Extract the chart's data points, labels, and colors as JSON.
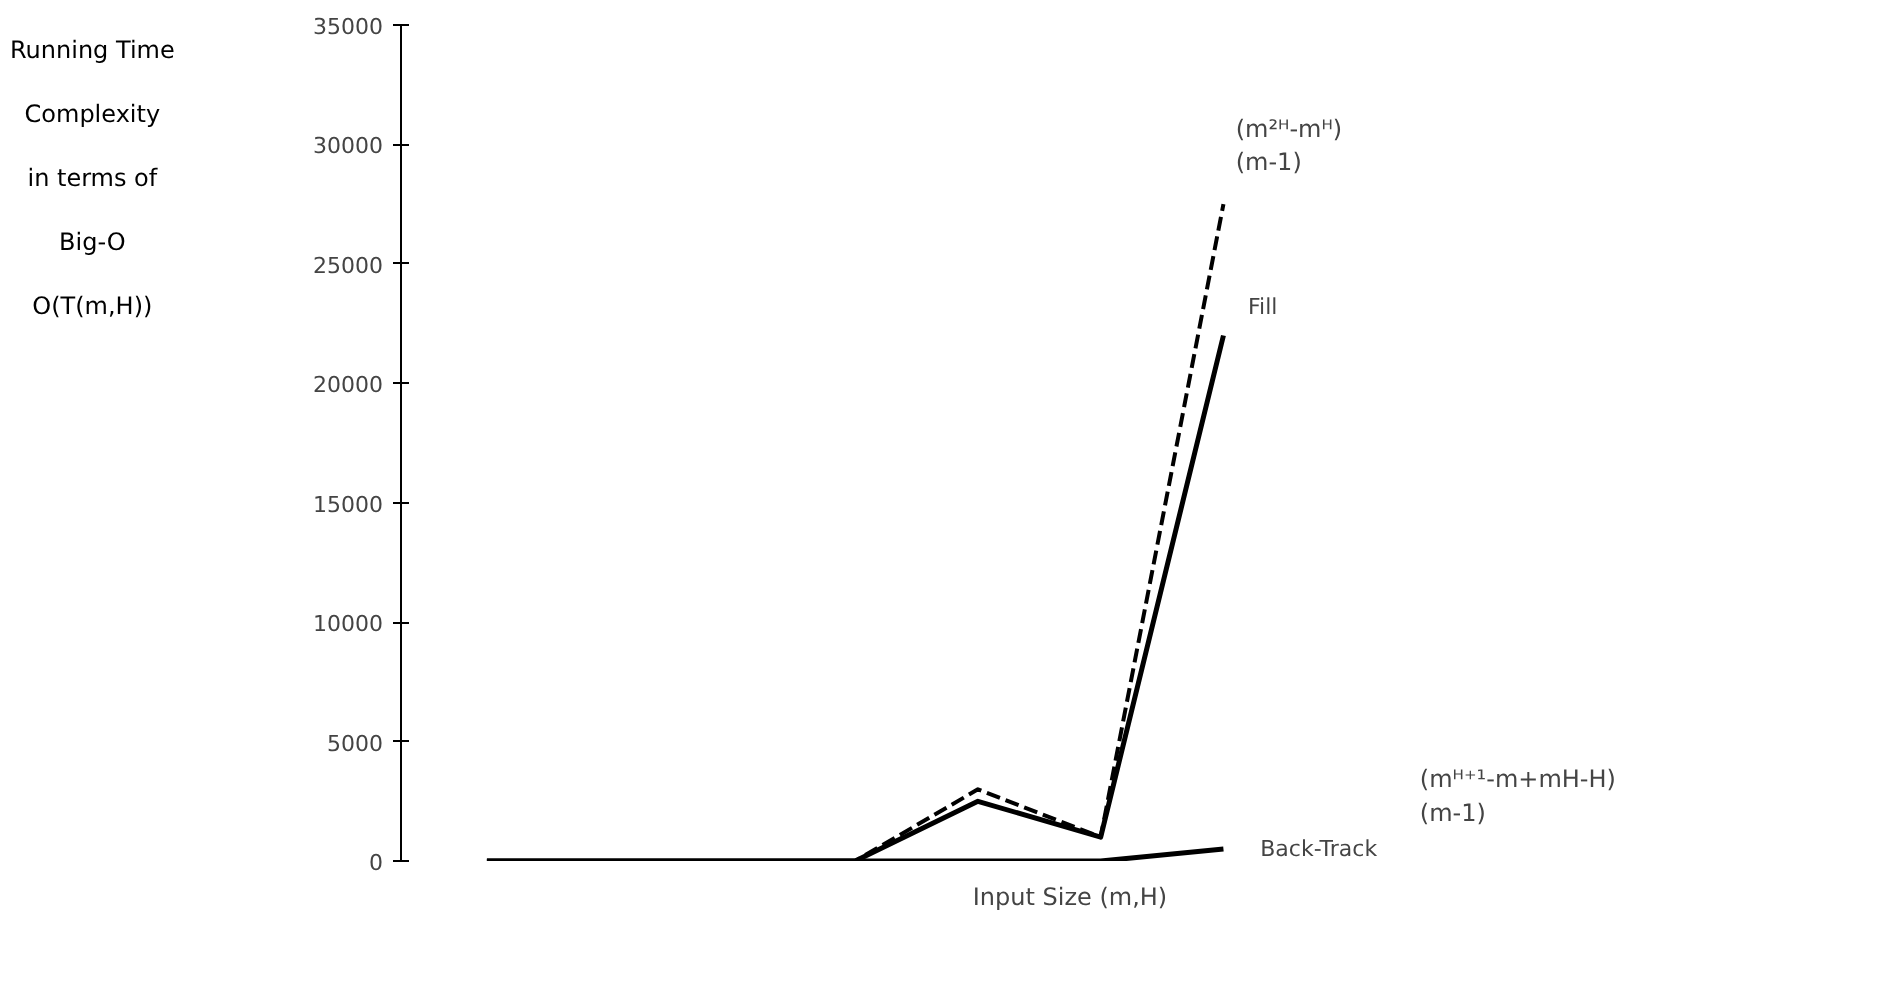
{
  "chart_data": {
    "type": "line",
    "ylabel": "Running Time\nComplexity\nin terms of\nBig-O\nO(T(m,H))",
    "xlabel": "Input Size (m,H)",
    "categories": [
      null,
      null,
      null,
      null,
      null,
      null,
      null
    ],
    "series": [
      {
        "color": "#000000",
        "line_style": "dashed",
        "values": [
          0,
          0,
          0,
          0,
          3000,
          1000,
          27500
        ]
      },
      {
        "name": "Fill",
        "color": "#000000",
        "values": [
          0,
          0,
          0,
          0,
          2500,
          1000,
          22000
        ]
      },
      {
        "name": "Back-Track",
        "color": "#000000",
        "values": [
          0,
          0,
          0,
          0,
          0,
          0,
          500
        ]
      }
    ],
    "ylim": [
      0,
      35000
    ],
    "yticks": [
      0,
      5000,
      10000,
      15000,
      20000,
      25000,
      30000,
      35000
    ],
    "annotations": [
      "(m²ᴴ-mᴴ)\n(m-1)",
      "(mᴴ⁺¹-m+mH-H)\n(m-1)"
    ],
    "grid": false,
    "marker": "none",
    "line_style": "solid"
  }
}
